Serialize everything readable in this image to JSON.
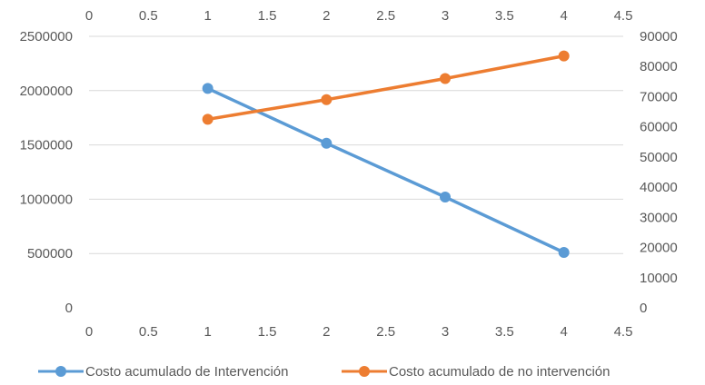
{
  "chart_data": {
    "type": "scatter",
    "title": "",
    "xlabel": "",
    "ylabel": "",
    "grid": true,
    "legend_position": "bottom",
    "x_axis": {
      "range": [
        0,
        4.5
      ],
      "ticks": [
        "0",
        "0.5",
        "1",
        "1.5",
        "2",
        "2.5",
        "3",
        "3.5",
        "4",
        "4.5"
      ],
      "shown": [
        "top",
        "bottom"
      ]
    },
    "y_axis_left": {
      "range": [
        0,
        2500000
      ],
      "ticks": [
        "0",
        "500000",
        "1000000",
        "1500000",
        "2000000",
        "2500000"
      ]
    },
    "y_axis_right": {
      "range": [
        0,
        90000
      ],
      "ticks": [
        "0",
        "10000",
        "20000",
        "30000",
        "40000",
        "50000",
        "60000",
        "70000",
        "80000",
        "90000"
      ]
    },
    "series": [
      {
        "name": "Costo acumulado de Intervención",
        "color": "#5b9bd5",
        "axis": "left",
        "x": [
          1,
          2,
          3,
          4
        ],
        "y": [
          2020000,
          1515000,
          1020000,
          510000
        ]
      },
      {
        "name": "Costo acumulado de no intervención",
        "color": "#ed7d31",
        "axis": "right",
        "x": [
          1,
          2,
          3,
          4
        ],
        "y": [
          62500,
          69000,
          76000,
          83500
        ]
      }
    ]
  }
}
